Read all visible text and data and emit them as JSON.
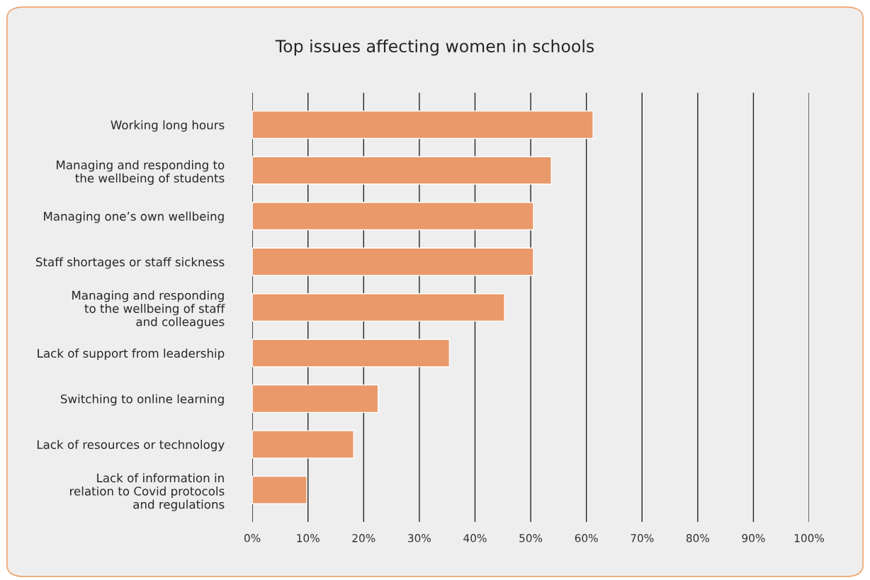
{
  "chart_data": {
    "type": "bar",
    "orientation": "horizontal",
    "title": "Top issues affecting women in schools",
    "categories": [
      "Working long hours",
      "Managing and responding to\nthe wellbeing of students",
      "Managing one’s own wellbeing",
      "Staff shortages or staff sickness",
      "Managing and responding\nto the wellbeing of staff\nand colleagues",
      "Lack of support from leadership",
      "Switching to online learning",
      "Lack of resources or technology",
      "Lack of information in\nrelation to Covid protocols\nand regulations"
    ],
    "values": [
      61.2,
      53.7,
      50.5,
      50.5,
      45.3,
      35.4,
      22.6,
      18.2,
      9.8
    ],
    "color": "#e9996a",
    "xlim": [
      0,
      100
    ],
    "xticks": [
      {
        "value": 0,
        "label": "0%"
      },
      {
        "value": 10,
        "label": "10%"
      },
      {
        "value": 20,
        "label": "20%"
      },
      {
        "value": 30,
        "label": "30%"
      },
      {
        "value": 40,
        "label": "40%"
      },
      {
        "value": 50,
        "label": "50%"
      },
      {
        "value": 60,
        "label": "60%"
      },
      {
        "value": 70,
        "label": "70%"
      },
      {
        "value": 80,
        "label": "80%"
      },
      {
        "value": 90,
        "label": "90%"
      },
      {
        "value": 100,
        "label": "100%"
      }
    ],
    "grid": "x",
    "legend": false
  }
}
